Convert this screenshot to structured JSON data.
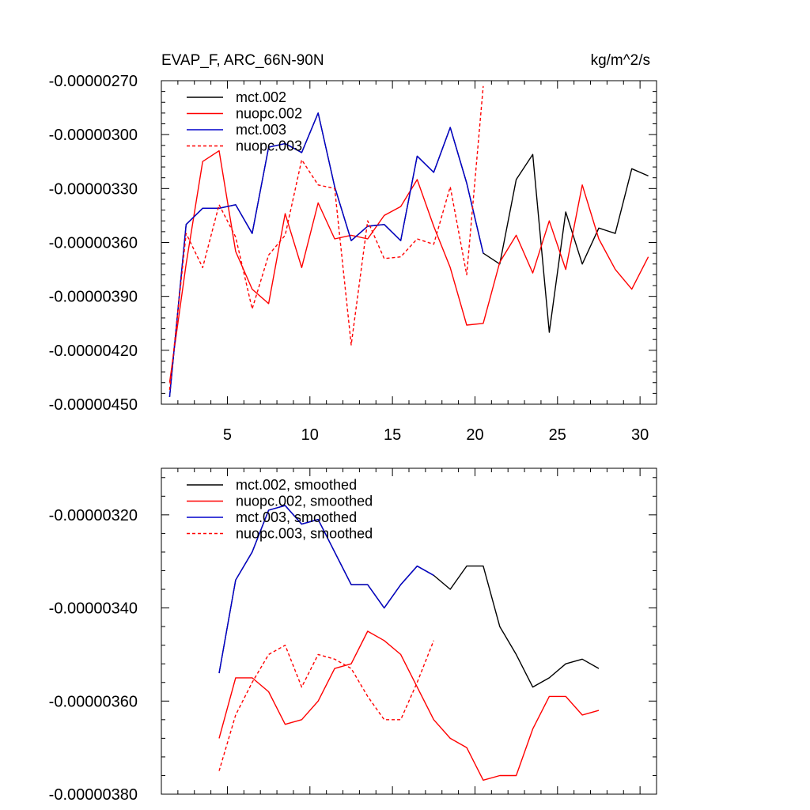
{
  "chart_data": [
    {
      "type": "line",
      "title": "EVAP_F, ARC_66N-90N",
      "units": "kg/m^2/s",
      "xlabel": "",
      "ylabel": "",
      "xlim": [
        1,
        31
      ],
      "ylim": [
        -4.5e-06,
        -2.7e-06
      ],
      "yticks": [
        -4.5e-06,
        -4.2e-06,
        -3.9e-06,
        -3.6e-06,
        -3.3e-06,
        -3e-06,
        -2.7e-06
      ],
      "ytick_labels": [
        "-0.00000450",
        "-0.00000420",
        "-0.00000390",
        "-0.00000360",
        "-0.00000330",
        "-0.00000300",
        "-0.00000270"
      ],
      "xticks": [
        5,
        10,
        15,
        20,
        25,
        30
      ],
      "xtick_labels": [
        "5",
        "10",
        "15",
        "20",
        "25",
        "30"
      ],
      "legend_position": "top-left",
      "series": [
        {
          "name": "mct.002",
          "color": "#000000",
          "dash": false,
          "x": [
            1.5,
            2.5,
            3.5,
            4.5,
            5.5,
            6.5,
            7.5,
            8.5,
            9.5,
            10.5,
            11.5,
            12.5,
            13.5,
            14.5,
            15.5,
            16.5,
            17.5,
            18.5,
            19.5,
            20.5,
            21.5,
            22.5,
            23.5,
            24.5,
            25.5,
            26.5,
            27.5,
            28.5,
            29.5,
            30.5
          ],
          "values": [
            -4.46e-06,
            -3.5e-06,
            -3.41e-06,
            -3.41e-06,
            -3.39e-06,
            -3.55e-06,
            -3.07e-06,
            -3.05e-06,
            -3.1e-06,
            -2.88e-06,
            -3.29e-06,
            -3.59e-06,
            -3.51e-06,
            -3.5e-06,
            -3.59e-06,
            -3.12e-06,
            -3.21e-06,
            -2.96e-06,
            -3.27e-06,
            -3.66e-06,
            -3.72e-06,
            -3.25e-06,
            -3.11e-06,
            -4.1e-06,
            -3.43e-06,
            -3.72e-06,
            -3.52e-06,
            -3.55e-06,
            -3.19e-06,
            -3.23e-06
          ]
        },
        {
          "name": "nuopc.002",
          "color": "#ff0000",
          "dash": false,
          "x": [
            1.5,
            2.5,
            3.5,
            4.5,
            5.5,
            6.5,
            7.5,
            8.5,
            9.5,
            10.5,
            11.5,
            12.5,
            13.5,
            14.5,
            15.5,
            16.5,
            17.5,
            18.5,
            19.5,
            20.5,
            21.5,
            22.5,
            23.5,
            24.5,
            25.5,
            26.5,
            27.5,
            28.5,
            29.5,
            30.5
          ],
          "values": [
            -4.38e-06,
            -3.72e-06,
            -3.15e-06,
            -3.09e-06,
            -3.65e-06,
            -3.86e-06,
            -3.94e-06,
            -3.44e-06,
            -3.74e-06,
            -3.38e-06,
            -3.58e-06,
            -3.56e-06,
            -3.58e-06,
            -3.45e-06,
            -3.4e-06,
            -3.25e-06,
            -3.51e-06,
            -3.74e-06,
            -4.06e-06,
            -4.05e-06,
            -3.71e-06,
            -3.56e-06,
            -3.77e-06,
            -3.48e-06,
            -3.75e-06,
            -3.28e-06,
            -3.58e-06,
            -3.75e-06,
            -3.86e-06,
            -3.68e-06
          ]
        },
        {
          "name": "mct.003",
          "color": "#0000cc",
          "dash": false,
          "x": [
            1.5,
            2.5,
            3.5,
            4.5,
            5.5,
            6.5,
            7.5,
            8.5,
            9.5,
            10.5,
            11.5,
            12.5,
            13.5,
            14.5,
            15.5,
            16.5,
            17.5,
            18.5,
            19.5,
            20.5
          ],
          "values": [
            -4.46e-06,
            -3.5e-06,
            -3.41e-06,
            -3.41e-06,
            -3.39e-06,
            -3.55e-06,
            -3.07e-06,
            -3.05e-06,
            -3.1e-06,
            -2.88e-06,
            -3.29e-06,
            -3.59e-06,
            -3.51e-06,
            -3.5e-06,
            -3.59e-06,
            -3.12e-06,
            -3.21e-06,
            -2.96e-06,
            -3.27e-06,
            -3.66e-06
          ]
        },
        {
          "name": "nuopc.003",
          "color": "#ff0000",
          "dash": true,
          "x": [
            1.5,
            2.5,
            3.5,
            4.5,
            5.5,
            6.5,
            7.5,
            8.5,
            9.5,
            10.5,
            11.5,
            12.5,
            13.5,
            14.5,
            15.5,
            16.5,
            17.5,
            18.5,
            19.5,
            20.5
          ],
          "values": [
            -4.42e-06,
            -3.55e-06,
            -3.74e-06,
            -3.39e-06,
            -3.57e-06,
            -3.97e-06,
            -3.67e-06,
            -3.56e-06,
            -3.14e-06,
            -3.28e-06,
            -3.3e-06,
            -4.17e-06,
            -3.48e-06,
            -3.69e-06,
            -3.68e-06,
            -3.58e-06,
            -3.61e-06,
            -3.29e-06,
            -3.78e-06,
            -2.73e-06
          ]
        }
      ]
    },
    {
      "type": "line",
      "title": "",
      "xlabel": "",
      "ylabel": "",
      "xlim": [
        1,
        31
      ],
      "ylim": [
        -3.8e-06,
        -3.1e-06
      ],
      "yticks": [
        -3.8e-06,
        -3.6e-06,
        -3.4e-06,
        -3.2e-06
      ],
      "ytick_labels": [
        "-0.00000380",
        "-0.00000360",
        "-0.00000340",
        "-0.00000320"
      ],
      "xticks": [
        5,
        10,
        15,
        20,
        25,
        30
      ],
      "xtick_labels": [],
      "legend_position": "top-left",
      "series": [
        {
          "name": "mct.002, smoothed",
          "color": "#000000",
          "dash": false,
          "x": [
            4.5,
            5.5,
            6.5,
            7.5,
            8.5,
            9.5,
            10.5,
            11.5,
            12.5,
            13.5,
            14.5,
            15.5,
            16.5,
            17.5,
            18.5,
            19.5,
            20.5,
            21.5,
            22.5,
            23.5,
            24.5,
            25.5,
            26.5,
            27.5
          ],
          "values": [
            -3.54e-06,
            -3.34e-06,
            -3.28e-06,
            -3.19e-06,
            -3.18e-06,
            -3.22e-06,
            -3.21e-06,
            -3.28e-06,
            -3.35e-06,
            -3.35e-06,
            -3.4e-06,
            -3.35e-06,
            -3.31e-06,
            -3.33e-06,
            -3.36e-06,
            -3.31e-06,
            -3.31e-06,
            -3.44e-06,
            -3.5e-06,
            -3.57e-06,
            -3.55e-06,
            -3.52e-06,
            -3.51e-06,
            -3.53e-06
          ]
        },
        {
          "name": "nuopc.002, smoothed",
          "color": "#ff0000",
          "dash": false,
          "x": [
            4.5,
            5.5,
            6.5,
            7.5,
            8.5,
            9.5,
            10.5,
            11.5,
            12.5,
            13.5,
            14.5,
            15.5,
            16.5,
            17.5,
            18.5,
            19.5,
            20.5,
            21.5,
            22.5,
            23.5,
            24.5,
            25.5,
            26.5,
            27.5
          ],
          "values": [
            -3.68e-06,
            -3.55e-06,
            -3.55e-06,
            -3.58e-06,
            -3.65e-06,
            -3.64e-06,
            -3.6e-06,
            -3.53e-06,
            -3.52e-06,
            -3.45e-06,
            -3.47e-06,
            -3.5e-06,
            -3.57e-06,
            -3.64e-06,
            -3.68e-06,
            -3.7e-06,
            -3.77e-06,
            -3.76e-06,
            -3.76e-06,
            -3.66e-06,
            -3.59e-06,
            -3.59e-06,
            -3.63e-06,
            -3.62e-06
          ]
        },
        {
          "name": "mct.003, smoothed",
          "color": "#0000cc",
          "dash": false,
          "x": [
            4.5,
            5.5,
            6.5,
            7.5,
            8.5,
            9.5,
            10.5,
            11.5,
            12.5,
            13.5,
            14.5,
            15.5,
            16.5,
            17.5
          ],
          "values": [
            -3.54e-06,
            -3.34e-06,
            -3.28e-06,
            -3.19e-06,
            -3.18e-06,
            -3.22e-06,
            -3.21e-06,
            -3.28e-06,
            -3.35e-06,
            -3.35e-06,
            -3.4e-06,
            -3.35e-06,
            -3.31e-06,
            -3.33e-06
          ]
        },
        {
          "name": "nuopc.003, smoothed",
          "color": "#ff0000",
          "dash": true,
          "x": [
            4.5,
            5.5,
            6.5,
            7.5,
            8.5,
            9.5,
            10.5,
            11.5,
            12.5,
            13.5,
            14.5,
            15.5,
            16.5,
            17.5
          ],
          "values": [
            -3.75e-06,
            -3.63e-06,
            -3.56e-06,
            -3.5e-06,
            -3.48e-06,
            -3.57e-06,
            -3.5e-06,
            -3.51e-06,
            -3.53e-06,
            -3.59e-06,
            -3.64e-06,
            -3.64e-06,
            -3.56e-06,
            -3.47e-06
          ]
        }
      ]
    }
  ]
}
